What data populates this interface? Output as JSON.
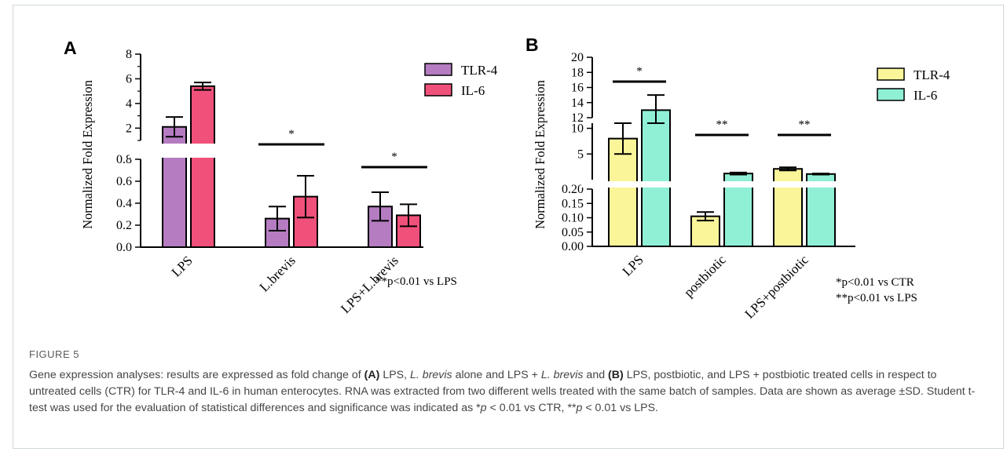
{
  "chart_data": [
    {
      "panel": "A",
      "type": "bar",
      "ylabel": "Normalized Fold Expression",
      "categories": [
        "LPS",
        "L.brevis",
        "LPS+L.brevis"
      ],
      "series": [
        {
          "name": "TLR-4",
          "color": "#b57cc1",
          "values": [
            2.1,
            0.26,
            0.37
          ],
          "errors": [
            0.8,
            0.11,
            0.13
          ]
        },
        {
          "name": "IL-6",
          "color": "#f0517a",
          "values": [
            5.4,
            0.46,
            0.29
          ],
          "errors": [
            0.3,
            0.19,
            0.1
          ]
        }
      ],
      "y_axis_break": true,
      "ylim_lower": [
        0,
        0.8
      ],
      "ylim_upper": [
        1,
        8
      ],
      "yticks_lower": [
        "0.0",
        "0.2",
        "0.4",
        "0.6",
        "0.8"
      ],
      "yticks_upper": [
        "2",
        "4",
        "6",
        "8"
      ],
      "significance": [
        {
          "category": "L.brevis",
          "label": "*"
        },
        {
          "category": "LPS+L.brevis",
          "label": "*"
        }
      ],
      "annotation": "**p<0.01 vs LPS",
      "legend_position": "top-right"
    },
    {
      "panel": "B",
      "type": "bar",
      "ylabel": "Normalized Fold Expression",
      "categories": [
        "LPS",
        "postbiotic",
        "LPS+postbiotic"
      ],
      "series": [
        {
          "name": "TLR-4",
          "color": "#fbf59a",
          "values": [
            8,
            0.105,
            2.1
          ],
          "errors": [
            3,
            0.015,
            0.3
          ]
        },
        {
          "name": "IL-6",
          "color": "#8ff0d6",
          "values": [
            13,
            1.2,
            1.1
          ],
          "errors": [
            2,
            0.2,
            0.1
          ]
        }
      ],
      "y_axis_break": true,
      "ylim_lower": [
        0,
        0.2
      ],
      "ylim_middle": [
        0,
        11
      ],
      "ylim_upper": [
        12,
        20
      ],
      "yticks_lower": [
        "0.00",
        "0.05",
        "0.10",
        "0.15",
        "0.20"
      ],
      "yticks_middle": [
        "5",
        "10"
      ],
      "yticks_upper": [
        "12",
        "14",
        "16",
        "18",
        "20"
      ],
      "significance": [
        {
          "category": "LPS",
          "label": "*"
        },
        {
          "category": "postbiotic",
          "label": "**"
        },
        {
          "category": "LPS+postbiotic",
          "label": "**"
        }
      ],
      "annotations": [
        "*p<0.01 vs CTR",
        "**p<0.01 vs LPS"
      ],
      "legend_position": "top-right"
    }
  ],
  "caption": {
    "title": "FIGURE 5",
    "segments": [
      {
        "t": "Gene expression analyses: results are expressed as fold change of ",
        "s": ""
      },
      {
        "t": "(A)",
        "s": "b"
      },
      {
        "t": " LPS, ",
        "s": ""
      },
      {
        "t": "L. brevis",
        "s": "i"
      },
      {
        "t": " alone and LPS + ",
        "s": ""
      },
      {
        "t": "L. brevis",
        "s": "i"
      },
      {
        "t": " and ",
        "s": ""
      },
      {
        "t": "(B)",
        "s": "b"
      },
      {
        "t": " LPS, postbiotic, and LPS + postbiotic treated cells in respect to untreated cells (CTR) for TLR-4 and IL-6 in human enterocytes. RNA was extracted from two different wells treated with the same batch of samples. Data are shown as average ±SD. Student t-test was used for the evaluation of statistical differences and significance was indicated as *",
        "s": ""
      },
      {
        "t": "p",
        "s": "i"
      },
      {
        "t": " < 0.01 vs CTR, **",
        "s": ""
      },
      {
        "t": "p",
        "s": "i"
      },
      {
        "t": " < 0.01 vs LPS.",
        "s": ""
      }
    ]
  }
}
